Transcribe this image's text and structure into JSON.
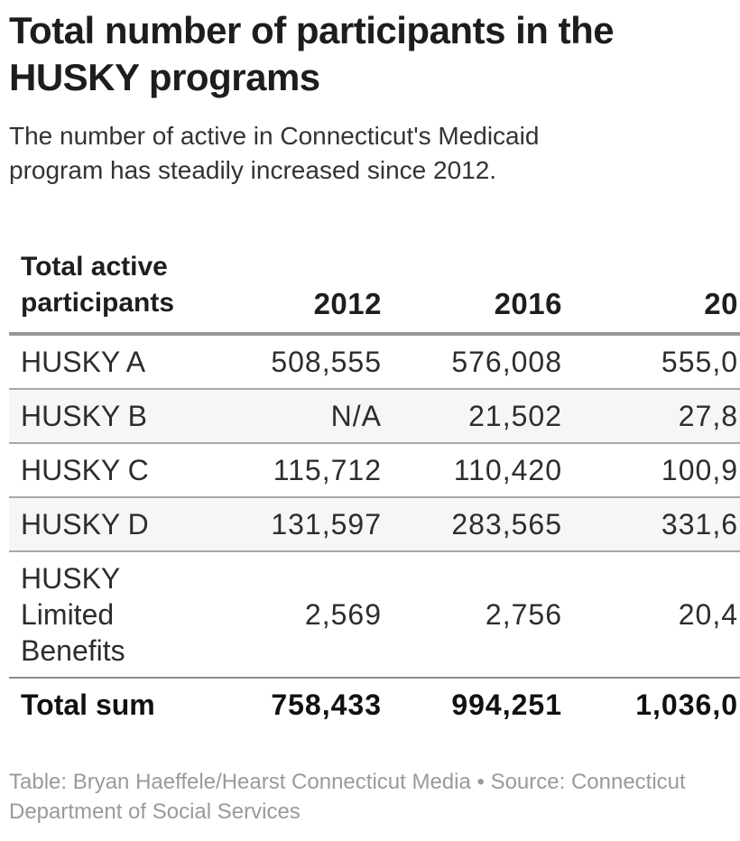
{
  "header": {
    "title_lines": [
      "Total number of participants in the",
      "HUSKY programs"
    ],
    "description_lines": [
      "The number of active in Connecticut's Medicaid",
      "program has steadily increased since 2012."
    ]
  },
  "chart_data": {
    "type": "table",
    "title": "Total number of participants in the HUSKY programs",
    "subtitle": "The number of active in Connecticut's Medicaid program has steadily increased since 2012.",
    "columns": [
      "Total active participants",
      "2012",
      "2016",
      "20"
    ],
    "rows": [
      {
        "label": "HUSKY A",
        "values": [
          "508,555",
          "576,008",
          "555,0"
        ]
      },
      {
        "label": "HUSKY B",
        "values": [
          "N/A",
          "21,502",
          "27,8"
        ]
      },
      {
        "label": "HUSKY C",
        "values": [
          "115,712",
          "110,420",
          "100,9"
        ]
      },
      {
        "label": "HUSKY D",
        "values": [
          "131,597",
          "283,565",
          "331,6"
        ]
      },
      {
        "label": "HUSKY Limited Benefits",
        "values": [
          "2,569",
          "2,756",
          "20,4"
        ]
      }
    ],
    "total_row": {
      "label": "Total sum",
      "values": [
        "758,433",
        "994,251",
        "1,036,0"
      ]
    },
    "layout": {
      "striped_rows": true,
      "rightmost_column_clipped_at_image_edge": true
    }
  },
  "footer": {
    "lines": [
      "Table: Bryan Haeffele/Hearst Connecticut Media • Source: Connecticut",
      "Department of Social Services"
    ]
  },
  "colors": {
    "title_text": "#1d1d1d",
    "body_text": "#2d2d2d",
    "stripe_background": "#f6f6f6",
    "header_rule": "#989898",
    "row_rule": "#a8a8a8",
    "total_rule": "#8c8c8c",
    "footer_text": "#9a9a9a"
  }
}
